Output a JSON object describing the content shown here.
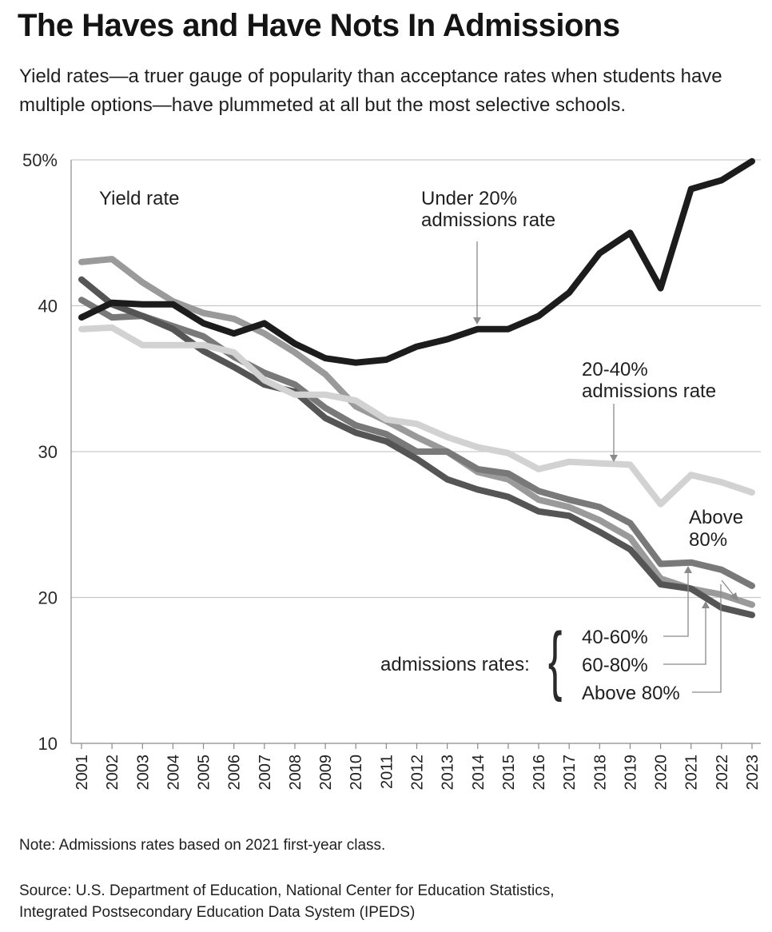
{
  "header": {
    "title": "The Haves and Have Nots In Admissions",
    "subtitle": "Yield rates—a truer gauge of popularity than acceptance rates when students have multiple options—have plummeted at all but the most selective schools."
  },
  "footer": {
    "note": "Note: Admissions rates based on 2021 first-year class.",
    "source_line1": "Source: U.S. Department of Education, National Center for Education Statistics,",
    "source_line2": "Integrated Postsecondary Education Data System (IPEDS)"
  },
  "chart_data": {
    "type": "line",
    "title": "The Haves and Have Nots In Admissions",
    "ylabel": "Yield rate",
    "xlabel": "",
    "ylim": [
      10,
      50
    ],
    "yticks": [
      10,
      20,
      30,
      40,
      50
    ],
    "ytick_labels": [
      "10",
      "20",
      "30",
      "40",
      "50%"
    ],
    "grid": true,
    "x": [
      "2001",
      "2002",
      "2003",
      "2004",
      "2005",
      "2006",
      "2007",
      "2008",
      "2009",
      "2010",
      "2011",
      "2012",
      "2013",
      "2014",
      "2015",
      "2016",
      "2017",
      "2018",
      "2019",
      "2020",
      "2021",
      "2022",
      "2023"
    ],
    "series": [
      {
        "name": "Above 80% admissions rate",
        "color": "#9a9a9a",
        "values": [
          43.0,
          43.2,
          41.6,
          40.3,
          39.5,
          39.1,
          38.1,
          36.8,
          35.3,
          33.1,
          32.1,
          31.0,
          30.0,
          28.6,
          28.1,
          26.7,
          26.2,
          25.3,
          24.1,
          21.3,
          20.6,
          20.2,
          19.5
        ]
      },
      {
        "name": "40-60% admissions rate",
        "color": "#797979",
        "values": [
          40.4,
          39.2,
          39.3,
          38.6,
          37.9,
          36.5,
          35.4,
          34.6,
          33.0,
          31.8,
          31.2,
          30.0,
          30.0,
          28.8,
          28.5,
          27.3,
          26.7,
          26.2,
          25.1,
          22.3,
          22.4,
          21.9,
          20.8
        ]
      },
      {
        "name": "60-80% admissions rate",
        "color": "#555555",
        "values": [
          41.8,
          40.1,
          39.3,
          38.4,
          36.9,
          35.8,
          34.6,
          34.1,
          32.3,
          31.3,
          30.7,
          29.5,
          28.1,
          27.4,
          26.9,
          25.9,
          25.6,
          24.5,
          23.3,
          20.9,
          20.6,
          19.3,
          18.8
        ]
      },
      {
        "name": "20-40% admissions rate",
        "color": "#d2d2d2",
        "values": [
          38.4,
          38.5,
          37.3,
          37.3,
          37.3,
          36.8,
          34.9,
          33.9,
          33.9,
          33.5,
          32.2,
          31.9,
          31.0,
          30.3,
          29.9,
          28.8,
          29.3,
          29.2,
          29.1,
          26.4,
          28.4,
          27.9,
          27.2
        ]
      },
      {
        "name": "Under 20% admissions rate",
        "color": "#1c1c1c",
        "values": [
          39.2,
          40.2,
          40.1,
          40.1,
          38.8,
          38.1,
          38.8,
          37.4,
          36.4,
          36.1,
          36.3,
          37.2,
          37.7,
          38.4,
          38.4,
          39.3,
          40.9,
          43.6,
          45.0,
          41.2,
          48.0,
          48.6,
          49.9
        ]
      }
    ],
    "annotations": {
      "yield_rate": "Yield rate",
      "under20_line1": "Under 20%",
      "under20_line2": "admissions rate",
      "r2040_line1": "20-40%",
      "r2040_line2": "admissions rate",
      "above80_line1": "Above",
      "above80_line2": "80%",
      "group_label": "admissions rates:",
      "brace": "{",
      "legend_4060": "40-60%",
      "legend_6080": "60-80%",
      "legend_above80": "Above 80%"
    }
  }
}
